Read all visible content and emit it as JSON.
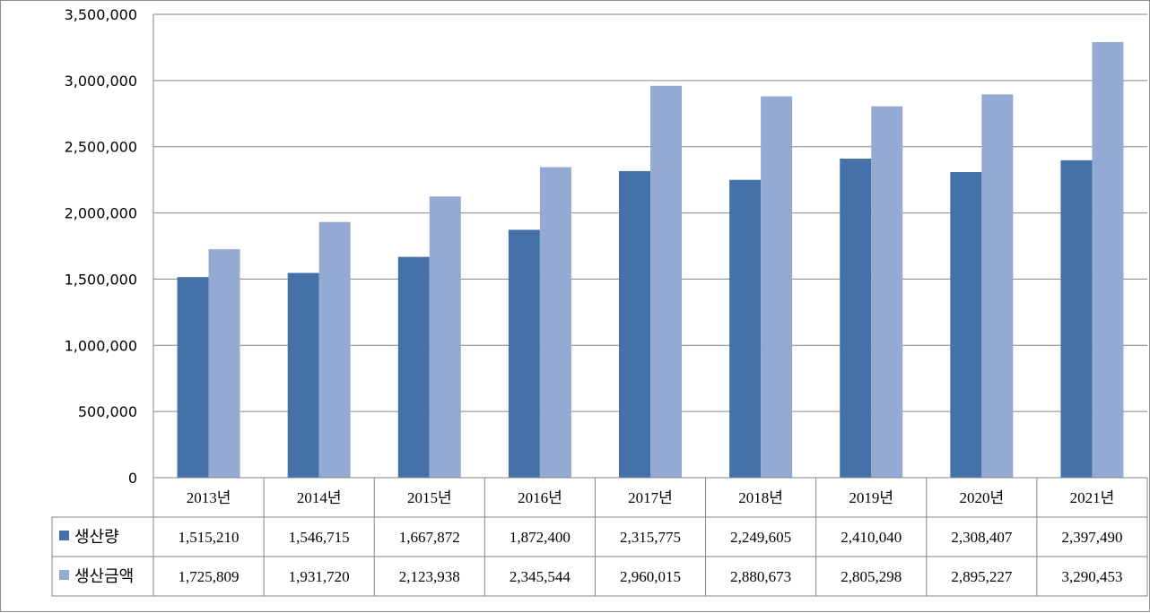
{
  "chart_data": {
    "type": "bar",
    "categories": [
      "2013년",
      "2014년",
      "2015년",
      "2016년",
      "2017년",
      "2018년",
      "2019년",
      "2020년",
      "2021년"
    ],
    "series": [
      {
        "name": "생산량",
        "color": "#4472A8",
        "values": [
          1515210,
          1546715,
          1667872,
          1872400,
          2315775,
          2249605,
          2410040,
          2308407,
          2397490
        ],
        "labels": [
          "1,515,210",
          "1,546,715",
          "1,667,872",
          "1,872,400",
          "2,315,775",
          "2,249,605",
          "2,410,040",
          "2,308,407",
          "2,397,490"
        ]
      },
      {
        "name": "생산금액",
        "color": "#95AAD2",
        "values": [
          1725809,
          1931720,
          2123938,
          2345544,
          2960015,
          2880673,
          2805298,
          2895227,
          3290453
        ],
        "labels": [
          "1,725,809",
          "1,931,720",
          "2,123,938",
          "2,345,544",
          "2,960,015",
          "2,880,673",
          "2,805,298",
          "2,895,227",
          "3,290,453"
        ]
      }
    ],
    "yticks": [
      "0",
      "500,000",
      "1,000,000",
      "1,500,000",
      "2,000,000",
      "2,500,000",
      "3,000,000",
      "3,500,000"
    ],
    "ylim": [
      0,
      3500000
    ],
    "grid": true,
    "legend": "data-table",
    "title": "",
    "xlabel": "",
    "ylabel": ""
  }
}
